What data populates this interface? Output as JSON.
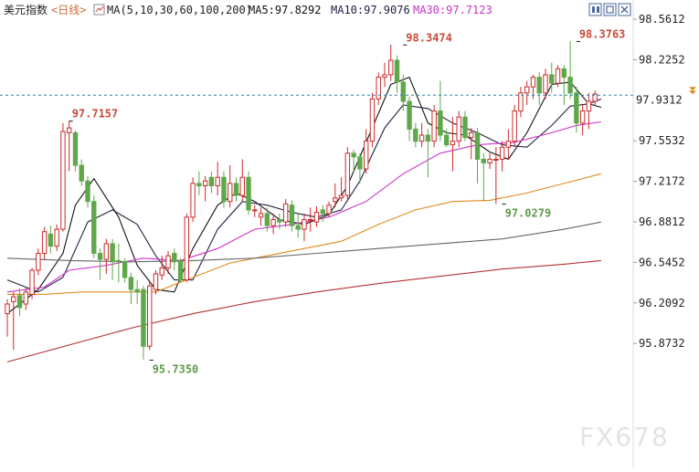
{
  "header": {
    "title": "美元指数",
    "period": "<日线>",
    "ma_label": "MA(5,10,30,60,100,200)",
    "ma5": "MA5:97.8292",
    "ma10": "MA10:97.9076",
    "ma30": "MA30:97.7123"
  },
  "watermark": "FX678",
  "buttons": [
    "chart-panel-icon",
    "fullscreen-icon",
    "close-icon"
  ],
  "colors": {
    "up": "#cc2b2b",
    "down": "#5ea84a",
    "ma5": "#111111",
    "ma10": "#222244",
    "ma30": "#cc33cc",
    "ma60": "#e08a1e",
    "ma100": "#666666",
    "ma200": "#b33333",
    "price_line": "#2a84b0"
  },
  "chart_data": {
    "type": "candlestick",
    "title": "美元指数",
    "period": "日线",
    "y_ticks": [
      "98.5612",
      "98.2252",
      "97.5532",
      "97.2172",
      "96.8812",
      "96.5452",
      "96.2092",
      "95.8732"
    ],
    "ylim": [
      95.73,
      98.6
    ],
    "current_price": "97.9312",
    "annotations": [
      {
        "label": "97.7157",
        "index": 10,
        "value": 97.7157,
        "type": "high"
      },
      {
        "label": "95.7350",
        "index": 23,
        "value": 95.735,
        "type": "low"
      },
      {
        "label": "98.3474",
        "index": 64,
        "value": 98.3474,
        "type": "high"
      },
      {
        "label": "97.0279",
        "index": 80,
        "value": 97.0279,
        "type": "low"
      },
      {
        "label": "98.3763",
        "index": 92,
        "value": 98.3763,
        "type": "high"
      }
    ],
    "candles": [
      [
        96.12,
        96.2,
        96.24,
        95.93
      ],
      [
        96.22,
        96.26,
        96.3,
        95.82
      ],
      [
        96.27,
        96.17,
        96.33,
        96.1
      ],
      [
        96.2,
        96.3,
        96.34,
        96.15
      ],
      [
        96.28,
        96.48,
        96.5,
        96.24
      ],
      [
        96.48,
        96.62,
        96.66,
        96.44
      ],
      [
        96.62,
        96.8,
        96.84,
        96.57
      ],
      [
        96.78,
        96.68,
        96.85,
        96.62
      ],
      [
        96.68,
        96.82,
        96.86,
        96.64
      ],
      [
        96.82,
        97.63,
        97.7,
        96.8
      ],
      [
        97.62,
        97.66,
        97.72,
        97.3
      ],
      [
        97.62,
        97.35,
        97.64,
        97.3
      ],
      [
        97.35,
        97.22,
        97.4,
        97.18
      ],
      [
        97.22,
        97.05,
        97.26,
        97.0
      ],
      [
        97.05,
        96.62,
        97.1,
        96.58
      ],
      [
        96.62,
        96.57,
        96.66,
        96.4
      ],
      [
        96.57,
        96.7,
        96.74,
        96.45
      ],
      [
        96.7,
        96.55,
        96.74,
        96.4
      ],
      [
        96.56,
        96.55,
        96.7,
        96.38
      ],
      [
        96.55,
        96.42,
        96.58,
        96.38
      ],
      [
        96.42,
        96.32,
        96.46,
        96.2
      ],
      [
        96.32,
        96.3,
        96.4,
        96.2
      ],
      [
        96.32,
        95.85,
        96.35,
        95.74
      ],
      [
        95.85,
        96.35,
        96.4,
        95.82
      ],
      [
        96.32,
        96.45,
        96.48,
        96.28
      ],
      [
        96.44,
        96.5,
        96.6,
        96.4
      ],
      [
        96.5,
        96.6,
        96.64,
        96.45
      ],
      [
        96.62,
        96.55,
        96.66,
        96.48
      ],
      [
        96.55,
        96.4,
        96.58,
        96.38
      ],
      [
        96.4,
        96.92,
        96.95,
        96.38
      ],
      [
        96.92,
        97.2,
        97.25,
        96.88
      ],
      [
        97.2,
        97.18,
        97.3,
        97.1
      ],
      [
        97.18,
        97.22,
        97.26,
        97.05
      ],
      [
        97.25,
        97.18,
        97.3,
        97.12
      ],
      [
        97.18,
        97.25,
        97.38,
        97.1
      ],
      [
        97.25,
        97.05,
        97.3,
        97.0
      ],
      [
        97.05,
        97.2,
        97.35,
        97.0
      ],
      [
        97.2,
        97.1,
        97.25,
        97.05
      ],
      [
        97.1,
        97.25,
        97.4,
        97.05
      ],
      [
        97.25,
        96.98,
        97.3,
        96.94
      ],
      [
        96.98,
        96.98,
        97.02,
        96.92
      ],
      [
        96.92,
        96.95,
        97.0,
        96.85
      ],
      [
        96.95,
        96.85,
        97.0,
        96.8
      ],
      [
        96.85,
        96.9,
        96.95,
        96.78
      ],
      [
        96.9,
        96.88,
        96.95,
        96.82
      ],
      [
        96.88,
        97.03,
        97.07,
        96.84
      ],
      [
        97.02,
        96.85,
        97.06,
        96.8
      ],
      [
        96.85,
        96.82,
        96.95,
        96.75
      ],
      [
        96.82,
        96.9,
        96.95,
        96.72
      ],
      [
        96.9,
        96.9,
        97.0,
        96.8
      ],
      [
        96.88,
        96.96,
        97.01,
        96.84
      ],
      [
        96.98,
        96.95,
        97.02,
        96.88
      ],
      [
        96.95,
        97.02,
        97.05,
        96.92
      ],
      [
        97.05,
        97.08,
        97.2,
        97.0
      ],
      [
        97.08,
        97.1,
        97.25,
        97.05
      ],
      [
        97.1,
        97.45,
        97.5,
        97.05
      ],
      [
        97.45,
        97.42,
        97.48,
        97.3
      ],
      [
        97.42,
        97.32,
        97.45,
        97.2
      ],
      [
        97.32,
        97.55,
        97.65,
        97.28
      ],
      [
        97.55,
        97.9,
        97.95,
        97.5
      ],
      [
        97.9,
        98.08,
        98.12,
        97.85
      ],
      [
        98.08,
        98.1,
        98.2,
        98.0
      ],
      [
        98.1,
        98.22,
        98.35,
        98.05
      ],
      [
        98.22,
        98.04,
        98.26,
        97.95
      ],
      [
        98.04,
        97.88,
        98.1,
        97.8
      ],
      [
        97.88,
        97.65,
        97.92,
        97.55
      ],
      [
        97.65,
        97.55,
        97.7,
        97.5
      ],
      [
        97.55,
        97.6,
        97.7,
        97.5
      ],
      [
        97.6,
        97.55,
        97.65,
        97.25
      ],
      [
        97.55,
        97.8,
        97.85,
        97.5
      ],
      [
        97.8,
        97.6,
        98.05,
        97.55
      ],
      [
        97.6,
        97.52,
        97.65,
        97.5
      ],
      [
        97.52,
        97.55,
        97.75,
        97.3
      ],
      [
        97.55,
        97.75,
        97.8,
        97.5
      ],
      [
        97.75,
        97.58,
        97.8,
        97.55
      ],
      [
        97.58,
        97.62,
        97.66,
        97.4
      ],
      [
        97.62,
        97.4,
        97.66,
        97.2
      ],
      [
        97.4,
        97.37,
        97.45,
        97.05
      ],
      [
        97.37,
        97.4,
        97.45,
        97.32
      ],
      [
        97.4,
        97.4,
        97.5,
        97.03
      ],
      [
        97.4,
        97.5,
        97.55,
        97.3
      ],
      [
        97.5,
        97.55,
        97.65,
        97.4
      ],
      [
        97.55,
        97.8,
        97.85,
        97.5
      ],
      [
        97.8,
        97.95,
        98.0,
        97.75
      ],
      [
        97.95,
        98.0,
        98.05,
        97.85
      ],
      [
        98.0,
        98.08,
        98.1,
        97.9
      ],
      [
        98.08,
        97.95,
        98.12,
        97.85
      ],
      [
        97.95,
        98.1,
        98.15,
        97.9
      ],
      [
        98.1,
        98.03,
        98.2,
        97.95
      ],
      [
        98.03,
        98.15,
        98.18,
        98.0
      ],
      [
        98.15,
        98.08,
        98.18,
        97.85
      ],
      [
        98.08,
        97.95,
        98.38,
        97.9
      ],
      [
        97.95,
        97.7,
        98.0,
        97.62
      ],
      [
        97.7,
        97.8,
        97.85,
        97.6
      ],
      [
        97.8,
        97.88,
        97.95,
        97.65
      ],
      [
        97.88,
        97.94,
        97.97,
        97.85
      ]
    ],
    "ma_series": [
      {
        "name": "MA5",
        "key": "ma5",
        "points": [
          [
            0,
            96.12
          ],
          [
            5,
            96.32
          ],
          [
            9,
            96.62
          ],
          [
            11,
            97.02
          ],
          [
            14,
            97.24
          ],
          [
            18,
            96.92
          ],
          [
            21,
            96.52
          ],
          [
            24,
            96.32
          ],
          [
            27,
            96.3
          ],
          [
            30,
            96.66
          ],
          [
            34,
            97.02
          ],
          [
            37,
            97.12
          ],
          [
            40,
            97.05
          ],
          [
            44,
            96.9
          ],
          [
            48,
            96.86
          ],
          [
            52,
            96.94
          ],
          [
            55,
            97.18
          ],
          [
            59,
            97.66
          ],
          [
            62,
            98.02
          ],
          [
            65,
            98.08
          ],
          [
            68,
            97.7
          ],
          [
            71,
            97.62
          ],
          [
            74,
            97.6
          ],
          [
            78,
            97.46
          ],
          [
            81,
            97.4
          ],
          [
            84,
            97.62
          ],
          [
            88,
            98.02
          ],
          [
            91,
            98.04
          ],
          [
            94,
            97.86
          ],
          [
            96,
            97.83
          ]
        ]
      },
      {
        "name": "MA10",
        "key": "ma10",
        "points": [
          [
            0,
            96.4
          ],
          [
            5,
            96.3
          ],
          [
            9,
            96.42
          ],
          [
            13,
            96.88
          ],
          [
            17,
            96.98
          ],
          [
            21,
            96.86
          ],
          [
            24,
            96.6
          ],
          [
            27,
            96.4
          ],
          [
            30,
            96.4
          ],
          [
            34,
            96.82
          ],
          [
            38,
            97.05
          ],
          [
            42,
            97.02
          ],
          [
            46,
            96.96
          ],
          [
            50,
            96.92
          ],
          [
            54,
            96.98
          ],
          [
            57,
            97.22
          ],
          [
            61,
            97.66
          ],
          [
            64,
            97.85
          ],
          [
            68,
            97.82
          ],
          [
            72,
            97.7
          ],
          [
            76,
            97.62
          ],
          [
            80,
            97.52
          ],
          [
            84,
            97.5
          ],
          [
            88,
            97.68
          ],
          [
            91,
            97.84
          ],
          [
            94,
            97.86
          ],
          [
            96,
            97.9
          ]
        ]
      },
      {
        "name": "MA30",
        "key": "ma30",
        "points": [
          [
            0,
            96.3
          ],
          [
            6,
            96.34
          ],
          [
            10,
            96.48
          ],
          [
            16,
            96.52
          ],
          [
            22,
            96.58
          ],
          [
            28,
            96.56
          ],
          [
            34,
            96.66
          ],
          [
            40,
            96.82
          ],
          [
            46,
            96.86
          ],
          [
            52,
            96.92
          ],
          [
            58,
            97.05
          ],
          [
            64,
            97.28
          ],
          [
            70,
            97.45
          ],
          [
            76,
            97.52
          ],
          [
            82,
            97.54
          ],
          [
            88,
            97.62
          ],
          [
            92,
            97.68
          ],
          [
            96,
            97.71
          ]
        ]
      },
      {
        "name": "MA60",
        "key": "ma60",
        "points": [
          [
            0,
            96.28
          ],
          [
            6,
            96.28
          ],
          [
            12,
            96.3
          ],
          [
            18,
            96.3
          ],
          [
            24,
            96.3
          ],
          [
            30,
            96.42
          ],
          [
            36,
            96.54
          ],
          [
            42,
            96.6
          ],
          [
            48,
            96.66
          ],
          [
            54,
            96.72
          ],
          [
            60,
            96.86
          ],
          [
            66,
            96.98
          ],
          [
            72,
            97.05
          ],
          [
            78,
            97.06
          ],
          [
            84,
            97.12
          ],
          [
            90,
            97.2
          ],
          [
            96,
            97.28
          ]
        ]
      },
      {
        "name": "MA100",
        "key": "ma100",
        "points": [
          [
            0,
            96.58
          ],
          [
            10,
            96.56
          ],
          [
            20,
            96.55
          ],
          [
            30,
            96.56
          ],
          [
            40,
            96.58
          ],
          [
            50,
            96.62
          ],
          [
            60,
            96.66
          ],
          [
            70,
            96.7
          ],
          [
            80,
            96.74
          ],
          [
            90,
            96.82
          ],
          [
            96,
            96.88
          ]
        ]
      },
      {
        "name": "MA200",
        "key": "ma200",
        "points": [
          [
            0,
            95.72
          ],
          [
            10,
            95.86
          ],
          [
            20,
            96.0
          ],
          [
            30,
            96.12
          ],
          [
            40,
            96.22
          ],
          [
            50,
            96.3
          ],
          [
            60,
            96.37
          ],
          [
            70,
            96.43
          ],
          [
            80,
            96.49
          ],
          [
            90,
            96.53
          ],
          [
            96,
            96.56
          ]
        ]
      }
    ]
  }
}
